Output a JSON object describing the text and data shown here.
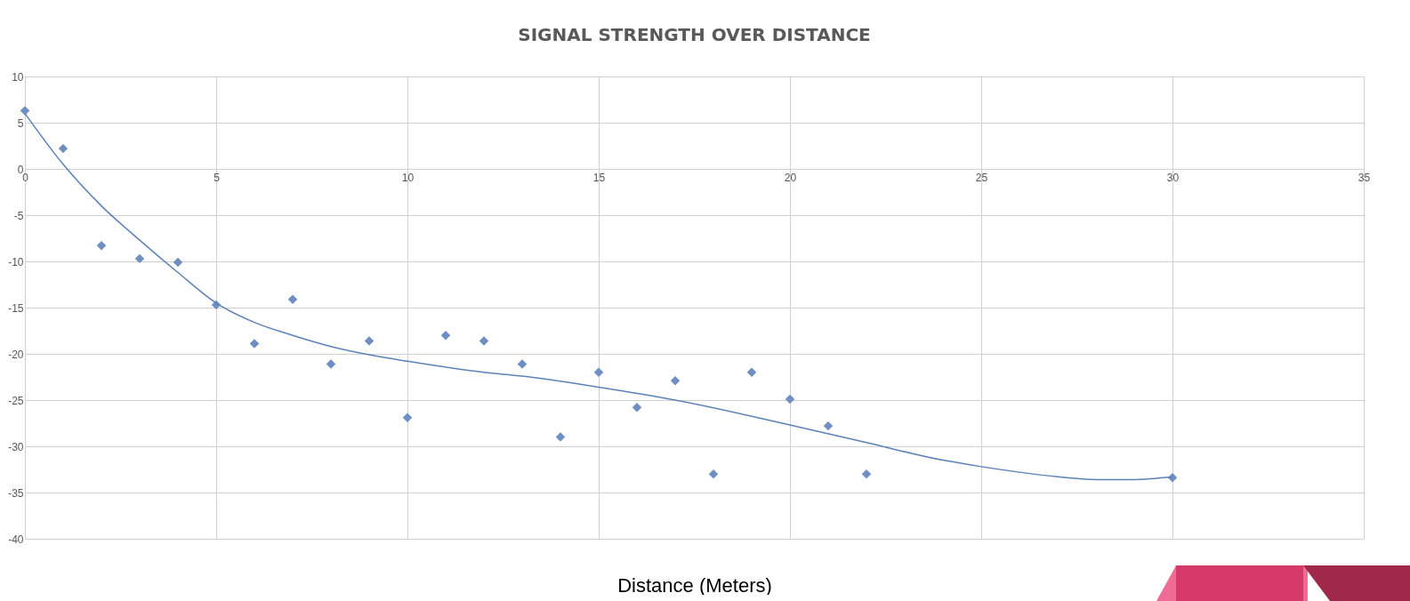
{
  "chart_data": {
    "type": "scatter",
    "title": "SIGNAL STRENGTH OVER DISTANCE",
    "xlabel": "Distance (Meters)",
    "xlim": [
      0,
      35
    ],
    "xticks": [
      0,
      5,
      10,
      15,
      20,
      25,
      30,
      35
    ],
    "ylim": [
      -40,
      10
    ],
    "yticks": [
      -40,
      -35,
      -30,
      -25,
      -20,
      -15,
      -10,
      -5,
      0,
      5,
      10
    ],
    "grid": true,
    "marker": "diamond",
    "series": [
      {
        "color": "#6f8fc4",
        "x": [
          0,
          1,
          2,
          3,
          4,
          5,
          6,
          7,
          8,
          9,
          10,
          11,
          12,
          13,
          14,
          15,
          16,
          17,
          18,
          19,
          20,
          21,
          22,
          30
        ],
        "values": [
          6.3,
          2.2,
          -8.3,
          -9.7,
          -10.1,
          -14.7,
          -18.9,
          -14.1,
          -21.1,
          -18.6,
          -26.9,
          -18,
          -18.6,
          -21.1,
          -29,
          -22,
          -25.8,
          -22.9,
          -33,
          -22,
          -24.9,
          -27.8,
          -33,
          -33.4
        ]
      },
      {
        "type": "line",
        "color": "#5b82b8",
        "marker": "none",
        "x": [
          0,
          1,
          2,
          3,
          4,
          5,
          6,
          7,
          8,
          9,
          10,
          12,
          13,
          15,
          17,
          20,
          22,
          24,
          25,
          26,
          27,
          28,
          29,
          30
        ],
        "values": [
          6,
          0.5,
          -4,
          -7.7,
          -11.2,
          -14.5,
          -16.6,
          -18,
          -19.2,
          -20.1,
          -20.8,
          -22,
          -22.4,
          -23.6,
          -25,
          -27.7,
          -29.6,
          -31.5,
          -32.2,
          -32.8,
          -33.3,
          -33.6,
          -33.6,
          -33.3
        ]
      }
    ]
  }
}
